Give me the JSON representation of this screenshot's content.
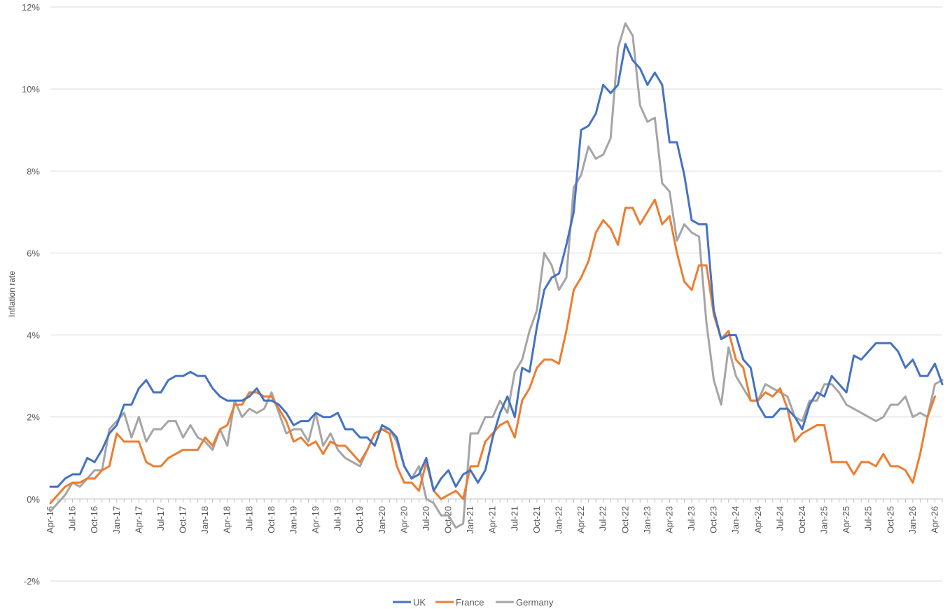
{
  "chart_data": {
    "type": "line",
    "title": "",
    "xlabel": "",
    "ylabel": "Inflation rate",
    "ylim": [
      -0.02,
      0.12
    ],
    "yticks": [
      "-2%",
      "0%",
      "2%",
      "4%",
      "6%",
      "8%",
      "10%",
      "12%"
    ],
    "grid": true,
    "legend": "bottom",
    "start_month": "2016-04",
    "x_tick_labels": [
      "Apr-16",
      "Jul-16",
      "Oct-16",
      "Jan-17",
      "Apr-17",
      "Jul-17",
      "Oct-17",
      "Jan-18",
      "Apr-18",
      "Jul-18",
      "Oct-18",
      "Jan-19",
      "Apr-19",
      "Jul-19",
      "Oct-19",
      "Jan-20",
      "Apr-20",
      "Jul-20",
      "Oct-20",
      "Jan-21",
      "Apr-21",
      "Jul-21",
      "Oct-21",
      "Jan-22",
      "Apr-22",
      "Jul-22",
      "Oct-22",
      "Jan-23",
      "Apr-23",
      "Jul-23",
      "Oct-23",
      "Jan-24",
      "Apr-24",
      "Jul-24",
      "Oct-24",
      "Jan-25",
      "Apr-25",
      "Jul-25",
      "Oct-25",
      "Jan-26",
      "Apr-26"
    ],
    "series": [
      {
        "name": "UK",
        "color": "#4472C4",
        "values": [
          0.3,
          0.3,
          0.5,
          0.6,
          0.6,
          1.0,
          0.9,
          1.2,
          1.6,
          1.8,
          2.3,
          2.3,
          2.7,
          2.9,
          2.6,
          2.6,
          2.9,
          3.0,
          3.0,
          3.1,
          3.0,
          3.0,
          2.7,
          2.5,
          2.4,
          2.4,
          2.4,
          2.5,
          2.7,
          2.4,
          2.4,
          2.3,
          2.1,
          1.8,
          1.9,
          1.9,
          2.1,
          2.0,
          2.0,
          2.1,
          1.7,
          1.7,
          1.5,
          1.5,
          1.3,
          1.8,
          1.7,
          1.5,
          0.8,
          0.5,
          0.6,
          1.0,
          0.2,
          0.5,
          0.7,
          0.3,
          0.6,
          0.7,
          0.4,
          0.7,
          1.5,
          2.1,
          2.5,
          2.0,
          3.2,
          3.1,
          4.2,
          5.1,
          5.4,
          5.5,
          6.2,
          7.0,
          9.0,
          9.1,
          9.4,
          10.1,
          9.9,
          10.1,
          11.1,
          10.7,
          10.5,
          10.1,
          10.4,
          10.1,
          8.7,
          8.7,
          7.9,
          6.8,
          6.7,
          6.7,
          4.6,
          3.9,
          4.0,
          4.0,
          3.4,
          3.2,
          2.3,
          2.0,
          2.0,
          2.2,
          2.2,
          2.0,
          1.7,
          2.3,
          2.6,
          2.5,
          3.0,
          2.8,
          2.6,
          3.5,
          3.4,
          3.6,
          3.8,
          3.8,
          3.8,
          3.6,
          3.2,
          3.4,
          3.0,
          3.0,
          3.3,
          2.8
        ]
      },
      {
        "name": "France",
        "color": "#ED7D31",
        "values": [
          -0.1,
          0.1,
          0.3,
          0.4,
          0.4,
          0.5,
          0.5,
          0.7,
          0.8,
          1.6,
          1.4,
          1.4,
          1.4,
          0.9,
          0.8,
          0.8,
          1.0,
          1.1,
          1.2,
          1.2,
          1.2,
          1.5,
          1.3,
          1.7,
          1.8,
          2.3,
          2.3,
          2.6,
          2.6,
          2.5,
          2.5,
          2.2,
          1.9,
          1.4,
          1.5,
          1.3,
          1.4,
          1.1,
          1.4,
          1.3,
          1.3,
          1.1,
          0.9,
          1.2,
          1.6,
          1.7,
          1.6,
          0.8,
          0.4,
          0.4,
          0.2,
          0.9,
          0.2,
          0.0,
          0.1,
          0.2,
          0.0,
          0.8,
          0.8,
          1.4,
          1.6,
          1.8,
          1.9,
          1.5,
          2.4,
          2.7,
          3.2,
          3.4,
          3.4,
          3.3,
          4.1,
          5.1,
          5.4,
          5.8,
          6.5,
          6.8,
          6.6,
          6.2,
          7.1,
          7.1,
          6.7,
          7.0,
          7.3,
          6.7,
          6.9,
          6.0,
          5.3,
          5.1,
          5.7,
          5.7,
          4.5,
          3.9,
          4.1,
          3.4,
          3.2,
          2.4,
          2.4,
          2.6,
          2.5,
          2.7,
          2.2,
          1.4,
          1.6,
          1.7,
          1.8,
          1.8,
          0.9,
          0.9,
          0.9,
          0.6,
          0.9,
          0.9,
          0.8,
          1.1,
          0.8,
          0.8,
          0.7,
          0.4,
          1.1,
          2.0,
          2.5
        ]
      },
      {
        "name": "Germany",
        "color": "#A5A5A5",
        "values": [
          -0.3,
          -0.1,
          0.1,
          0.4,
          0.3,
          0.5,
          0.7,
          0.7,
          1.7,
          1.9,
          2.1,
          1.5,
          2.0,
          1.4,
          1.7,
          1.7,
          1.9,
          1.9,
          1.5,
          1.8,
          1.5,
          1.4,
          1.2,
          1.7,
          1.3,
          2.4,
          2.0,
          2.2,
          2.1,
          2.2,
          2.6,
          2.1,
          1.6,
          1.7,
          1.7,
          1.4,
          2.1,
          1.3,
          1.6,
          1.2,
          1.0,
          0.9,
          0.8,
          1.2,
          1.6,
          1.7,
          1.7,
          1.4,
          0.8,
          0.5,
          0.8,
          0.0,
          -0.1,
          -0.4,
          -0.4,
          -0.7,
          -0.6,
          1.6,
          1.6,
          2.0,
          2.0,
          2.4,
          2.1,
          3.1,
          3.4,
          4.1,
          4.6,
          6.0,
          5.7,
          5.1,
          5.4,
          7.6,
          7.9,
          8.6,
          8.3,
          8.4,
          8.8,
          11.0,
          11.6,
          11.3,
          9.6,
          9.2,
          9.3,
          7.7,
          7.5,
          6.3,
          6.7,
          6.5,
          6.4,
          4.3,
          2.9,
          2.3,
          3.7,
          3.0,
          2.7,
          2.4,
          2.4,
          2.8,
          2.7,
          2.6,
          2.5,
          2.0,
          1.9,
          2.4,
          2.4,
          2.8,
          2.8,
          2.6,
          2.3,
          2.2,
          2.1,
          2.0,
          1.9,
          2.0,
          2.3,
          2.3,
          2.5,
          2.0,
          2.1,
          2.0,
          2.8,
          2.9
        ]
      }
    ]
  }
}
